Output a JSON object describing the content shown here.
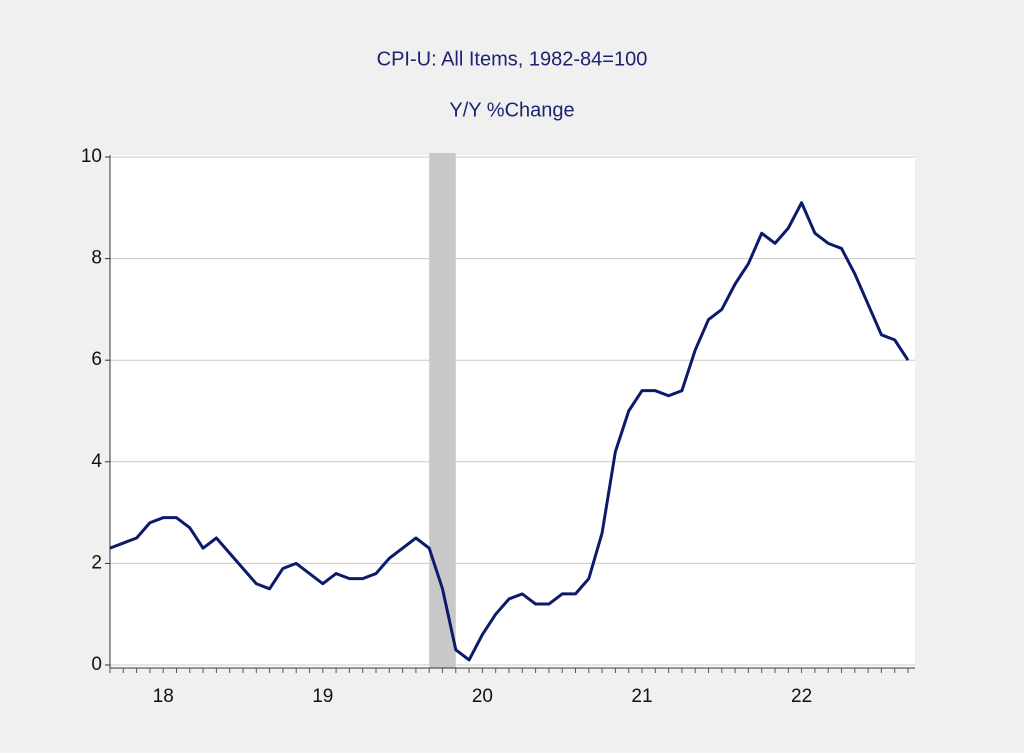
{
  "chart_data": {
    "type": "line",
    "title": "CPI-U: All Items, 1982-84=100",
    "subtitle": "Y/Y %Change",
    "categories": [
      null,
      null,
      null,
      null,
      "18",
      null,
      null,
      null,
      null,
      null,
      null,
      null,
      null,
      null,
      null,
      null,
      "19",
      null,
      null,
      null,
      null,
      null,
      null,
      null,
      null,
      null,
      null,
      null,
      "20",
      null,
      null,
      null,
      null,
      null,
      null,
      null,
      null,
      null,
      null,
      null,
      "21",
      null,
      null,
      null,
      null,
      null,
      null,
      null,
      null,
      null,
      null,
      null,
      "22",
      null,
      null,
      null,
      null,
      null,
      null,
      null,
      null
    ],
    "series": [
      {
        "name": "CPI-U Y/Y %Change",
        "color": "#0c1a6b",
        "values": [
          2.3,
          2.4,
          2.5,
          2.8,
          2.9,
          2.9,
          2.7,
          2.3,
          2.5,
          2.2,
          1.9,
          1.6,
          1.5,
          1.9,
          2.0,
          1.8,
          1.6,
          1.8,
          1.7,
          1.7,
          1.8,
          2.1,
          2.3,
          2.5,
          2.3,
          1.5,
          0.3,
          0.1,
          0.6,
          1.0,
          1.3,
          1.4,
          1.2,
          1.2,
          1.4,
          1.4,
          1.7,
          2.6,
          4.2,
          5.0,
          5.4,
          5.4,
          5.3,
          5.4,
          6.2,
          6.8,
          7.0,
          7.5,
          7.9,
          8.5,
          8.3,
          8.6,
          9.1,
          8.5,
          8.3,
          8.2,
          7.7,
          7.1,
          6.5,
          6.4,
          6.0
        ]
      }
    ],
    "shaded_range": [
      24,
      26
    ],
    "shade_color": "#c8c8c8",
    "ylim": [
      0,
      10
    ],
    "yticks": [
      0,
      2,
      4,
      6,
      8,
      10
    ],
    "grid": true
  }
}
